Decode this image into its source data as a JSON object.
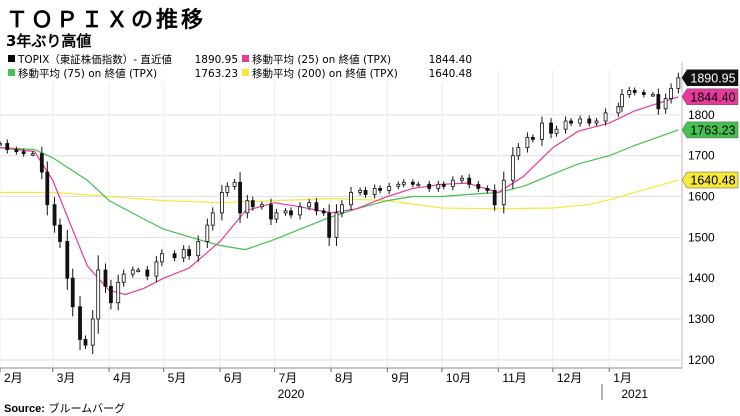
{
  "header": {
    "title": "ＴＯＰＩＸの推移",
    "subtitle": "3年ぶり高値",
    "source_label": "Source:",
    "source_value": "ブルームバーグ"
  },
  "chart_data": {
    "type": "line",
    "ylim": [
      1180,
      1910
    ],
    "yticks": [
      1200,
      1300,
      1400,
      1500,
      1600,
      1700,
      1800
    ],
    "x_start": "2020-02-01",
    "x_end": "2021-02-10",
    "xticks": [
      {
        "label": "2月",
        "date": "2020-02-01"
      },
      {
        "label": "3月",
        "date": "2020-03-01"
      },
      {
        "label": "4月",
        "date": "2020-04-01"
      },
      {
        "label": "5月",
        "date": "2020-05-01"
      },
      {
        "label": "6月",
        "date": "2020-06-01"
      },
      {
        "label": "7月",
        "date": "2020-07-01"
      },
      {
        "label": "8月",
        "date": "2020-08-01"
      },
      {
        "label": "9月",
        "date": "2020-09-01"
      },
      {
        "label": "10月",
        "date": "2020-10-01"
      },
      {
        "label": "11月",
        "date": "2020-11-01"
      },
      {
        "label": "12月",
        "date": "2020-12-01"
      },
      {
        "label": "1月",
        "date": "2021-01-01"
      }
    ],
    "year_labels": [
      {
        "label": "2020",
        "date": "2020-07-10"
      },
      {
        "label": "2021",
        "date": "2021-01-15"
      }
    ],
    "year_divider_date": "2020-12-28",
    "grid": true,
    "legend_position": "top-left",
    "series": [
      {
        "name": "TOPIX（東証株価指数）- 直近値",
        "kind": "candlestick",
        "color": "#000000",
        "last_value": "1890.95",
        "points": [
          [
            "2020-02-01",
            1730
          ],
          [
            "2020-02-05",
            1715
          ],
          [
            "2020-02-10",
            1710
          ],
          [
            "2020-02-14",
            1705
          ],
          [
            "2020-02-19",
            1705
          ],
          [
            "2020-02-24",
            1660
          ],
          [
            "2020-02-27",
            1580
          ],
          [
            "2020-03-02",
            1530
          ],
          [
            "2020-03-05",
            1490
          ],
          [
            "2020-03-09",
            1400
          ],
          [
            "2020-03-12",
            1330
          ],
          [
            "2020-03-16",
            1250
          ],
          [
            "2020-03-19",
            1236
          ],
          [
            "2020-03-23",
            1300
          ],
          [
            "2020-03-26",
            1420
          ],
          [
            "2020-03-30",
            1380
          ],
          [
            "2020-04-02",
            1340
          ],
          [
            "2020-04-06",
            1390
          ],
          [
            "2020-04-09",
            1410
          ],
          [
            "2020-04-14",
            1420
          ],
          [
            "2020-04-17",
            1420
          ],
          [
            "2020-04-22",
            1405
          ],
          [
            "2020-04-27",
            1440
          ],
          [
            "2020-04-30",
            1460
          ],
          [
            "2020-05-07",
            1450
          ],
          [
            "2020-05-12",
            1470
          ],
          [
            "2020-05-15",
            1455
          ],
          [
            "2020-05-20",
            1490
          ],
          [
            "2020-05-25",
            1530
          ],
          [
            "2020-05-28",
            1560
          ],
          [
            "2020-06-02",
            1610
          ],
          [
            "2020-06-05",
            1625
          ],
          [
            "2020-06-09",
            1635
          ],
          [
            "2020-06-12",
            1560
          ],
          [
            "2020-06-16",
            1590
          ],
          [
            "2020-06-19",
            1575
          ],
          [
            "2020-06-24",
            1580
          ],
          [
            "2020-06-29",
            1545
          ],
          [
            "2020-07-02",
            1560
          ],
          [
            "2020-07-07",
            1565
          ],
          [
            "2020-07-10",
            1555
          ],
          [
            "2020-07-15",
            1575
          ],
          [
            "2020-07-20",
            1585
          ],
          [
            "2020-07-24",
            1565
          ],
          [
            "2020-07-28",
            1560
          ],
          [
            "2020-07-31",
            1500
          ],
          [
            "2020-08-04",
            1560
          ],
          [
            "2020-08-07",
            1580
          ],
          [
            "2020-08-12",
            1610
          ],
          [
            "2020-08-17",
            1615
          ],
          [
            "2020-08-20",
            1605
          ],
          [
            "2020-08-25",
            1620
          ],
          [
            "2020-08-28",
            1615
          ],
          [
            "2020-09-02",
            1625
          ],
          [
            "2020-09-07",
            1630
          ],
          [
            "2020-09-10",
            1635
          ],
          [
            "2020-09-15",
            1630
          ],
          [
            "2020-09-18",
            1630
          ],
          [
            "2020-09-24",
            1620
          ],
          [
            "2020-09-29",
            1630
          ],
          [
            "2020-10-02",
            1625
          ],
          [
            "2020-10-07",
            1640
          ],
          [
            "2020-10-12",
            1645
          ],
          [
            "2020-10-16",
            1630
          ],
          [
            "2020-10-21",
            1620
          ],
          [
            "2020-10-26",
            1615
          ],
          [
            "2020-10-30",
            1580
          ],
          [
            "2020-11-04",
            1640
          ],
          [
            "2020-11-09",
            1700
          ],
          [
            "2020-11-12",
            1720
          ],
          [
            "2020-11-17",
            1745
          ],
          [
            "2020-11-20",
            1740
          ],
          [
            "2020-11-25",
            1780
          ],
          [
            "2020-11-30",
            1755
          ],
          [
            "2020-12-03",
            1765
          ],
          [
            "2020-12-08",
            1785
          ],
          [
            "2020-12-11",
            1780
          ],
          [
            "2020-12-16",
            1790
          ],
          [
            "2020-12-21",
            1780
          ],
          [
            "2020-12-25",
            1785
          ],
          [
            "2020-12-30",
            1805
          ],
          [
            "2021-01-06",
            1820
          ],
          [
            "2021-01-08",
            1850
          ],
          [
            "2021-01-12",
            1860
          ],
          [
            "2021-01-15",
            1855
          ],
          [
            "2021-01-20",
            1850
          ],
          [
            "2021-01-25",
            1850
          ],
          [
            "2021-01-28",
            1815
          ],
          [
            "2021-02-01",
            1840
          ],
          [
            "2021-02-04",
            1865
          ],
          [
            "2021-02-08",
            1890.95
          ]
        ]
      },
      {
        "name": "移動平均 (25) on 終値 (TPX)",
        "kind": "line",
        "color": "#e8399e",
        "last_value": "1844.40",
        "points": [
          [
            "2020-02-01",
            1720
          ],
          [
            "2020-02-20",
            1710
          ],
          [
            "2020-03-01",
            1640
          ],
          [
            "2020-03-10",
            1540
          ],
          [
            "2020-03-20",
            1430
          ],
          [
            "2020-04-01",
            1370
          ],
          [
            "2020-04-10",
            1360
          ],
          [
            "2020-04-20",
            1375
          ],
          [
            "2020-05-01",
            1400
          ],
          [
            "2020-05-15",
            1425
          ],
          [
            "2020-06-01",
            1490
          ],
          [
            "2020-06-15",
            1565
          ],
          [
            "2020-07-01",
            1585
          ],
          [
            "2020-07-15",
            1575
          ],
          [
            "2020-08-01",
            1560
          ],
          [
            "2020-08-15",
            1570
          ],
          [
            "2020-09-01",
            1600
          ],
          [
            "2020-09-15",
            1620
          ],
          [
            "2020-10-01",
            1630
          ],
          [
            "2020-10-15",
            1633
          ],
          [
            "2020-11-01",
            1610
          ],
          [
            "2020-11-15",
            1650
          ],
          [
            "2020-12-01",
            1720
          ],
          [
            "2020-12-15",
            1760
          ],
          [
            "2021-01-01",
            1780
          ],
          [
            "2021-01-15",
            1810
          ],
          [
            "2021-02-08",
            1844.4
          ]
        ]
      },
      {
        "name": "移動平均 (75) on 終値 (TPX)",
        "kind": "line",
        "color": "#45c152",
        "last_value": "1763.23",
        "points": [
          [
            "2020-02-01",
            1720
          ],
          [
            "2020-02-20",
            1715
          ],
          [
            "2020-03-01",
            1695
          ],
          [
            "2020-03-20",
            1640
          ],
          [
            "2020-04-01",
            1590
          ],
          [
            "2020-04-20",
            1545
          ],
          [
            "2020-05-01",
            1520
          ],
          [
            "2020-05-20",
            1495
          ],
          [
            "2020-06-01",
            1480
          ],
          [
            "2020-06-15",
            1470
          ],
          [
            "2020-07-01",
            1495
          ],
          [
            "2020-07-15",
            1520
          ],
          [
            "2020-08-01",
            1550
          ],
          [
            "2020-08-15",
            1570
          ],
          [
            "2020-09-01",
            1590
          ],
          [
            "2020-09-15",
            1600
          ],
          [
            "2020-10-01",
            1600
          ],
          [
            "2020-10-15",
            1605
          ],
          [
            "2020-11-01",
            1610
          ],
          [
            "2020-11-15",
            1625
          ],
          [
            "2020-12-01",
            1655
          ],
          [
            "2020-12-15",
            1680
          ],
          [
            "2021-01-01",
            1700
          ],
          [
            "2021-01-15",
            1725
          ],
          [
            "2021-02-08",
            1763.23
          ]
        ]
      },
      {
        "name": "移動平均 (200) on 終値 (TPX)",
        "kind": "line",
        "color": "#f6e93c",
        "last_value": "1640.48",
        "points": [
          [
            "2020-02-01",
            1610
          ],
          [
            "2020-03-01",
            1610
          ],
          [
            "2020-04-01",
            1600
          ],
          [
            "2020-05-01",
            1590
          ],
          [
            "2020-06-01",
            1585
          ],
          [
            "2020-07-01",
            1590
          ],
          [
            "2020-08-01",
            1595
          ],
          [
            "2020-09-01",
            1590
          ],
          [
            "2020-10-01",
            1572
          ],
          [
            "2020-11-01",
            1570
          ],
          [
            "2020-12-01",
            1572
          ],
          [
            "2020-12-20",
            1580
          ],
          [
            "2021-01-01",
            1592
          ],
          [
            "2021-01-15",
            1610
          ],
          [
            "2021-02-08",
            1640.48
          ]
        ]
      }
    ]
  }
}
